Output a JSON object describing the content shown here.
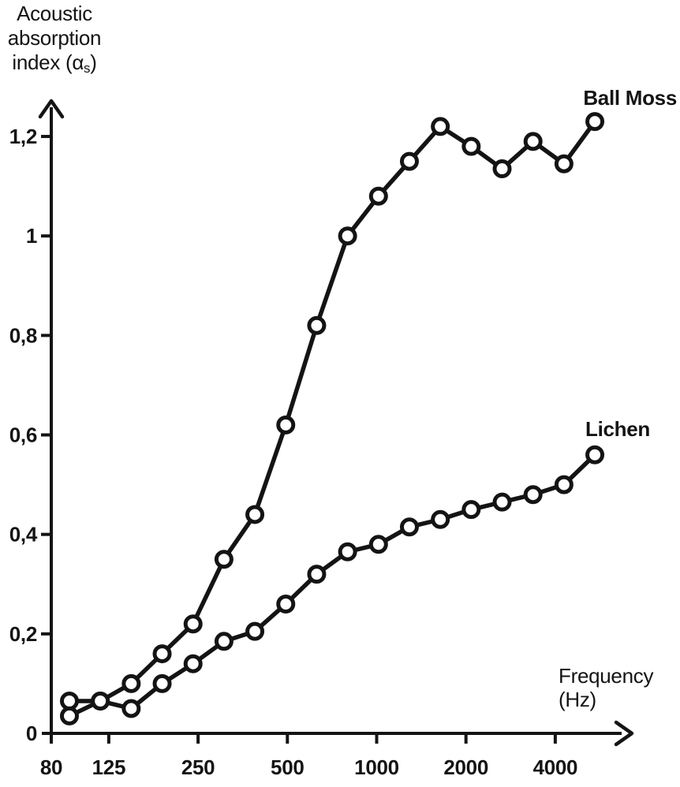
{
  "page": {
    "background": "#ffffff",
    "ink_color": "#141414"
  },
  "y_axis_title": {
    "line1": "Acoustic",
    "line2": "absorption",
    "line3_prefix": "index (α",
    "line3_sub": "s",
    "line3_suffix": ")"
  },
  "x_axis_title": {
    "line1": "Frequency",
    "line2": "(Hz)"
  },
  "chart_data": {
    "type": "line",
    "title": "",
    "xlabel": "Frequency (Hz)",
    "ylabel": "Acoustic absorption index (αs)",
    "x_scale": "log",
    "grid": false,
    "marker": "open-circle",
    "line_color": "#141414",
    "marker_fill": "#ffffff",
    "ylim": [
      0,
      1.3
    ],
    "x_ticks": [
      80,
      125,
      250,
      500,
      1000,
      2000,
      4000
    ],
    "x_tick_labels": [
      "80",
      "125",
      "250",
      "500",
      "1000",
      "2000",
      "4000"
    ],
    "y_ticks": [
      0,
      0.2,
      0.4,
      0.6,
      0.8,
      1.0,
      1.2
    ],
    "y_tick_labels": [
      "0",
      "0,2",
      "0,4",
      "0,6",
      "0,8",
      "1",
      "1,2"
    ],
    "x": [
      100,
      125,
      160,
      200,
      250,
      315,
      400,
      500,
      630,
      800,
      1000,
      1250,
      1600,
      2000,
      2500,
      3150,
      4000,
      5000
    ],
    "series": [
      {
        "name": "Ball Moss",
        "values": [
          0.065,
          0.065,
          0.1,
          0.16,
          0.22,
          0.35,
          0.44,
          0.62,
          0.82,
          1.0,
          1.08,
          1.15,
          1.22,
          1.18,
          1.135,
          1.19,
          1.145,
          1.23
        ]
      },
      {
        "name": "Lichen",
        "values": [
          0.035,
          0.065,
          0.05,
          0.1,
          0.14,
          0.185,
          0.205,
          0.26,
          0.32,
          0.365,
          0.38,
          0.415,
          0.43,
          0.45,
          0.465,
          0.48,
          0.5,
          0.56
        ]
      }
    ],
    "legend_position": "labels-at-line-ends"
  }
}
